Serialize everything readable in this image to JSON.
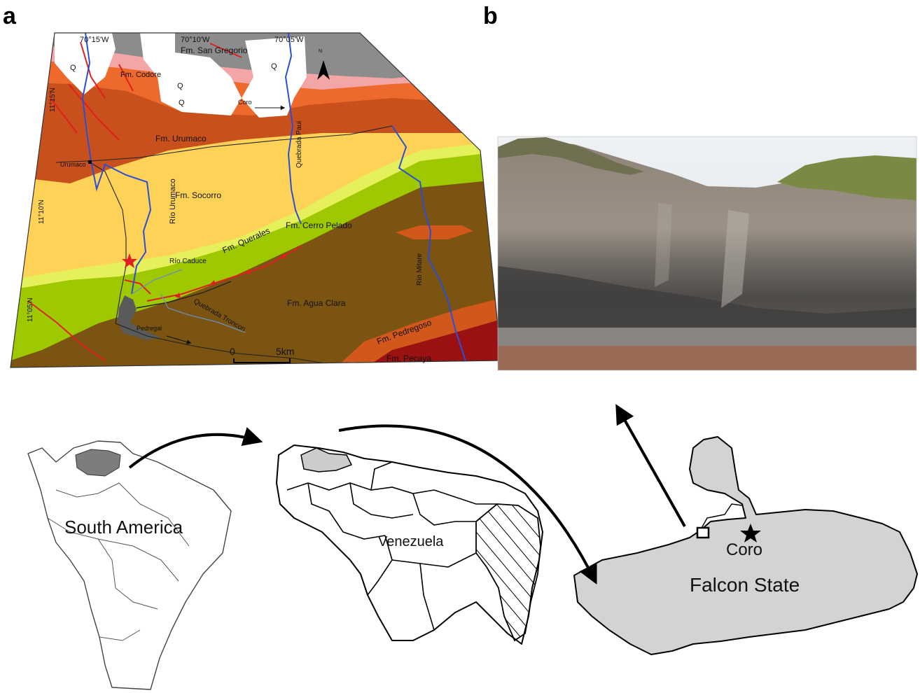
{
  "panels": {
    "a": "a",
    "b": "b"
  },
  "geo_map": {
    "north_label": "N",
    "coordinates": {
      "lon1": "70°15'W",
      "lon2": "70°10'W",
      "lon3": "70°05'W",
      "lat1": "11°15'N",
      "lat2": "11°10'N",
      "lat3": "11°05'N"
    },
    "formations": {
      "san_gregorio": "Fm. San Gregorio",
      "codore": "Fm. Codore",
      "urumaco": "Fm. Urumaco",
      "socorro": "Fm. Socorro",
      "querales": "Fm. Querales",
      "cerro_pelado": "Fm. Cerro Pelado",
      "agua_clara": "Fm. Agua Clara",
      "pedregoso": "Fm. Pedregoso",
      "pecaya": "Fm. Pecaya"
    },
    "quaternary": "Q",
    "places": {
      "urumaco_town": "Urumaco",
      "coro": "Coro",
      "pedregal": "Pedregal"
    },
    "rivers": {
      "rio_urumaco": "Río Urumaco",
      "quebrada_paui": "Quebrada Paui",
      "rio_caduce": "Río Caduce",
      "quebrada_troncon": "Quebrada Troncon",
      "rio_mitare": "Río Mitare"
    },
    "scale": {
      "zero": "0",
      "length": "5km"
    },
    "colors": {
      "quaternary": "#ffffff",
      "san_gregorio": "#8c8c8c",
      "codore_pink": "#f4a6a6",
      "codore": "#ee6a2c",
      "urumaco": "#c8501c",
      "socorro": "#fdd257",
      "querales": "#e6f05a",
      "cerro_pelado": "#9ec800",
      "agua_clara": "#7a5410",
      "pedregoso": "#d2571a",
      "pecaya": "#9b1010",
      "river": "#2a4fd6",
      "fault": "#e02020"
    }
  },
  "locator": {
    "south_america": "South America",
    "venezuela": "Venezuela",
    "falcon_state": "Falcon State",
    "coro": "Coro"
  }
}
